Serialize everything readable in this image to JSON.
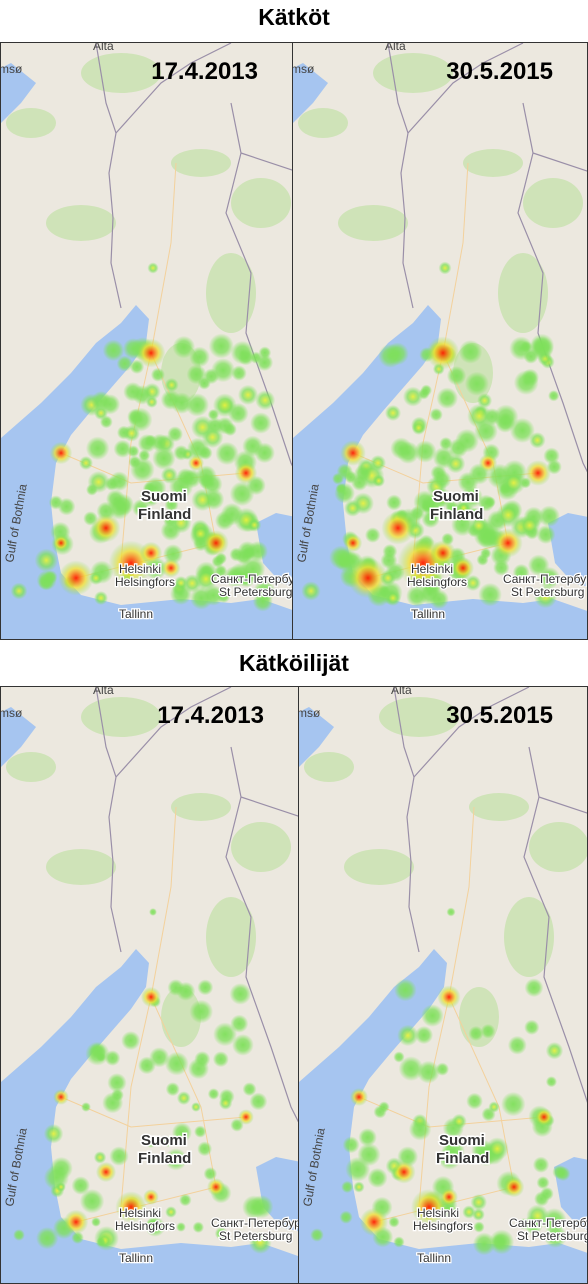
{
  "sections": [
    {
      "title": "Kätköt",
      "panels": [
        {
          "date": "17.4.2013"
        },
        {
          "date": "30.5.2015"
        }
      ]
    },
    {
      "title": "Kätköilijät",
      "panels": [
        {
          "date": "17.4.2013"
        },
        {
          "date": "30.5.2015"
        }
      ]
    }
  ],
  "map_labels": {
    "alta": "Alta",
    "tromso": "msø",
    "suomi": "Suomi",
    "finland": "Finland",
    "helsinki": "Helsinki",
    "helsingfors": "Helsingfors",
    "spb_ru": "Санкт-Петербург",
    "spb_en": "St Petersburg",
    "tallinn": "Tallinn",
    "gulf": "Gulf of Bothnia"
  }
}
